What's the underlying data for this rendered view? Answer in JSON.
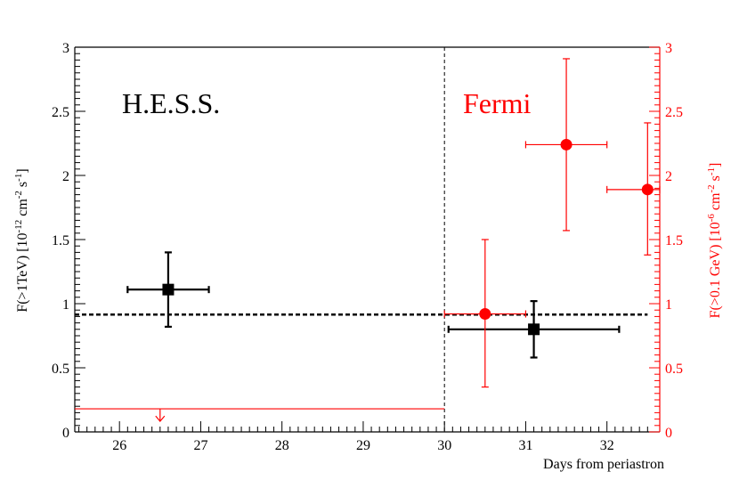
{
  "chart_data": {
    "type": "scatter",
    "xlabel": "Days from periastron",
    "x_range": [
      25.45,
      32.65
    ],
    "x_ticks": [
      "26",
      "27",
      "28",
      "29",
      "30",
      "31",
      "32"
    ],
    "left_axis": {
      "title_parts": [
        "F(>1TeV) [10",
        "-12",
        " cm",
        "-2",
        " s",
        "-1",
        "]"
      ],
      "range": [
        0,
        3
      ],
      "tick_labels": [
        "0",
        "0.5",
        "1",
        "1.5",
        "2",
        "2.5",
        "3"
      ],
      "color": "#000000"
    },
    "right_axis": {
      "title_parts": [
        "F(>0.1 GeV) [10",
        "-6",
        " cm",
        "-2",
        " s",
        "-1",
        "]"
      ],
      "range": [
        0,
        3
      ],
      "tick_labels": [
        "0",
        "0.5",
        "1",
        "1.5",
        "2",
        "2.5",
        "3"
      ],
      "color": "#ff0000"
    },
    "annotations": [
      {
        "text": "H.E.S.S.",
        "color": "#000000"
      },
      {
        "text": "Fermi",
        "color": "#ff0000"
      }
    ],
    "divider_x": 30.0,
    "series": [
      {
        "instrument": "H.E.S.S.",
        "axis": "left",
        "marker": "square",
        "color": "#000000",
        "points": [
          {
            "x": 26.6,
            "y": 1.11,
            "xerr": [
              0.5,
              0.5
            ],
            "yerr": [
              0.29,
              0.29
            ]
          },
          {
            "x": 31.1,
            "y": 0.8,
            "xerr": [
              1.05,
              1.05
            ],
            "yerr": [
              0.22,
              0.22
            ]
          }
        ]
      },
      {
        "instrument": "Fermi",
        "axis": "right",
        "marker": "circle",
        "color": "#ff0000",
        "points": [
          {
            "x": 30.5,
            "y": 0.92,
            "xerr": [
              0.5,
              0.5
            ],
            "yerr": [
              0.57,
              0.58
            ]
          },
          {
            "x": 31.5,
            "y": 2.24,
            "xerr": [
              0.5,
              0.5
            ],
            "yerr": [
              0.67,
              0.67
            ]
          },
          {
            "x": 32.5,
            "y": 1.89,
            "xerr": [
              0.5,
              0.15
            ],
            "yerr": [
              0.51,
              0.52
            ]
          }
        ]
      }
    ],
    "upper_limit": {
      "instrument": "Fermi",
      "axis": "right",
      "x_from": 25.45,
      "x_to": 30.0,
      "y": 0.18,
      "arrow_x": 26.5,
      "color": "#ff0000"
    },
    "reference_line": {
      "axis": "left",
      "y": 0.915,
      "x_from": 25.45,
      "x_to": 32.5,
      "style": "dashed",
      "color": "#000000"
    }
  }
}
